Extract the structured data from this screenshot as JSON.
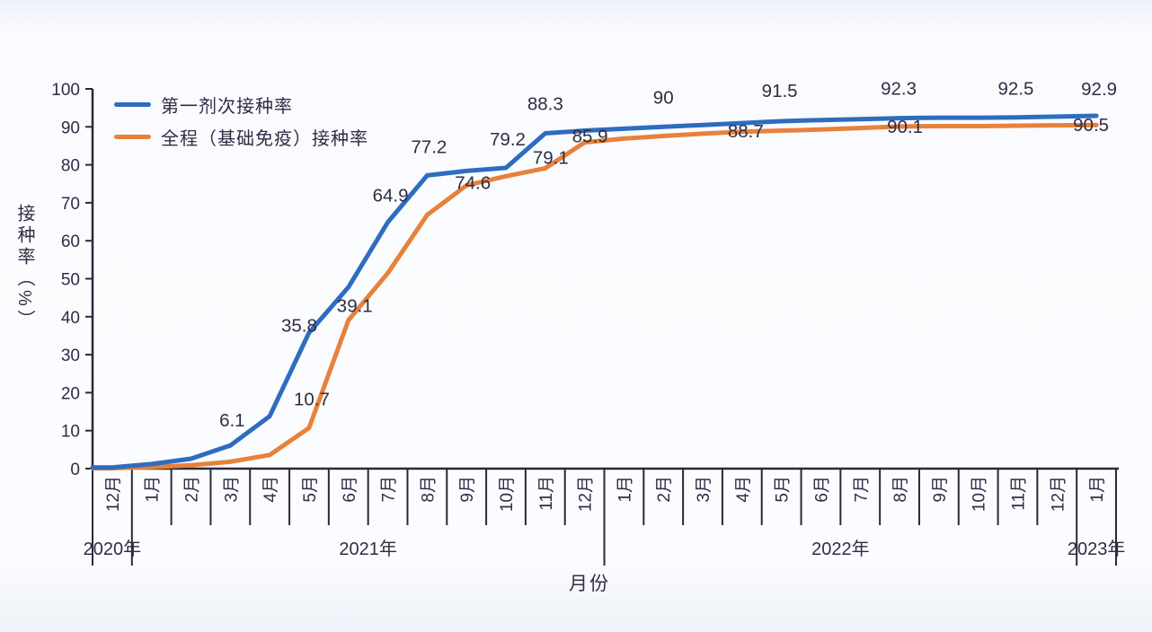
{
  "page": {
    "background": "#f5f7fc"
  },
  "chart_data": {
    "type": "line",
    "title": "",
    "xlabel": "月份",
    "ylabel": "接种率（%）",
    "ylim": [
      0,
      100
    ],
    "yticks": [
      0,
      10,
      20,
      30,
      40,
      50,
      60,
      70,
      80,
      90,
      100
    ],
    "grid": "off",
    "legend_position": "top-left",
    "axis_color": "#2a2939",
    "text_color": "#2f2d45",
    "categories": [
      "12月",
      "1月",
      "2月",
      "3月",
      "4月",
      "5月",
      "6月",
      "7月",
      "8月",
      "9月",
      "10月",
      "11月",
      "12月",
      "1月",
      "2月",
      "3月",
      "4月",
      "5月",
      "6月",
      "7月",
      "8月",
      "9月",
      "10月",
      "11月",
      "12月",
      "1月"
    ],
    "years": [
      {
        "label": "2020年",
        "from": 0,
        "to": 1
      },
      {
        "label": "2021年",
        "from": 1,
        "to": 13
      },
      {
        "label": "2022年",
        "from": 13,
        "to": 25
      },
      {
        "label": "2023年",
        "from": 25,
        "to": 26
      }
    ],
    "series": [
      {
        "id": "first-dose",
        "name": "第一剂次接种率",
        "color": "#2e6cbf",
        "values": [
          0.3,
          1.2,
          2.6,
          6.1,
          13.8,
          35.8,
          47.8,
          64.9,
          77.2,
          78.4,
          79.2,
          88.3,
          89.0,
          89.5,
          90,
          90.5,
          91.0,
          91.5,
          91.8,
          92.0,
          92.3,
          92.4,
          92.4,
          92.5,
          92.7,
          92.9
        ],
        "labels": [
          {
            "i": 3,
            "text": "6.1",
            "dx": 2,
            "dy": -28
          },
          {
            "i": 5,
            "text": "35.8",
            "dx": -11,
            "dy": -8
          },
          {
            "i": 7,
            "text": "64.9",
            "dx": 3,
            "dy": -30
          },
          {
            "i": 8,
            "text": "77.2",
            "dx": 2,
            "dy": -32
          },
          {
            "i": 10,
            "text": "79.2",
            "dx": 2,
            "dy": -32
          },
          {
            "i": 11,
            "text": "88.3",
            "dx": 0,
            "dy": -33
          },
          {
            "i": 14,
            "text": "90",
            "dx": 0,
            "dy": -33
          },
          {
            "i": 17,
            "text": "91.5",
            "dx": -2,
            "dy": -34
          },
          {
            "i": 20,
            "text": "92.3",
            "dx": -1,
            "dy": -33
          },
          {
            "i": 23,
            "text": "92.5",
            "dx": -2,
            "dy": -32
          },
          {
            "i": 25,
            "text": "92.9",
            "dx": 3,
            "dy": -30
          }
        ]
      },
      {
        "id": "full-course",
        "name": "全程（基础免疫）接种率",
        "color": "#e7813b",
        "values": [
          0.1,
          0.4,
          0.9,
          1.8,
          3.6,
          10.7,
          39.1,
          51.5,
          66.8,
          74.6,
          77.0,
          79.1,
          85.9,
          86.9,
          87.6,
          88.2,
          88.7,
          89.0,
          89.3,
          89.7,
          90.1,
          90.2,
          90.2,
          90.3,
          90.4,
          90.5
        ],
        "labels": [
          {
            "i": 5,
            "text": "10.7",
            "dx": 3,
            "dy": -32
          },
          {
            "i": 6,
            "text": "39.1",
            "dx": 7,
            "dy": -16
          },
          {
            "i": 9,
            "text": "74.6",
            "dx": 7,
            "dy": -3
          },
          {
            "i": 11,
            "text": "79.1",
            "dx": 6,
            "dy": -12
          },
          {
            "i": 12,
            "text": "85.9",
            "dx": 6,
            "dy": -7
          },
          {
            "i": 16,
            "text": "88.7",
            "dx": 4,
            "dy": -1
          },
          {
            "i": 20,
            "text": "90.1",
            "dx": 6,
            "dy": 0
          },
          {
            "i": 25,
            "text": "90.5",
            "dx": -6,
            "dy": 0
          }
        ]
      }
    ]
  }
}
